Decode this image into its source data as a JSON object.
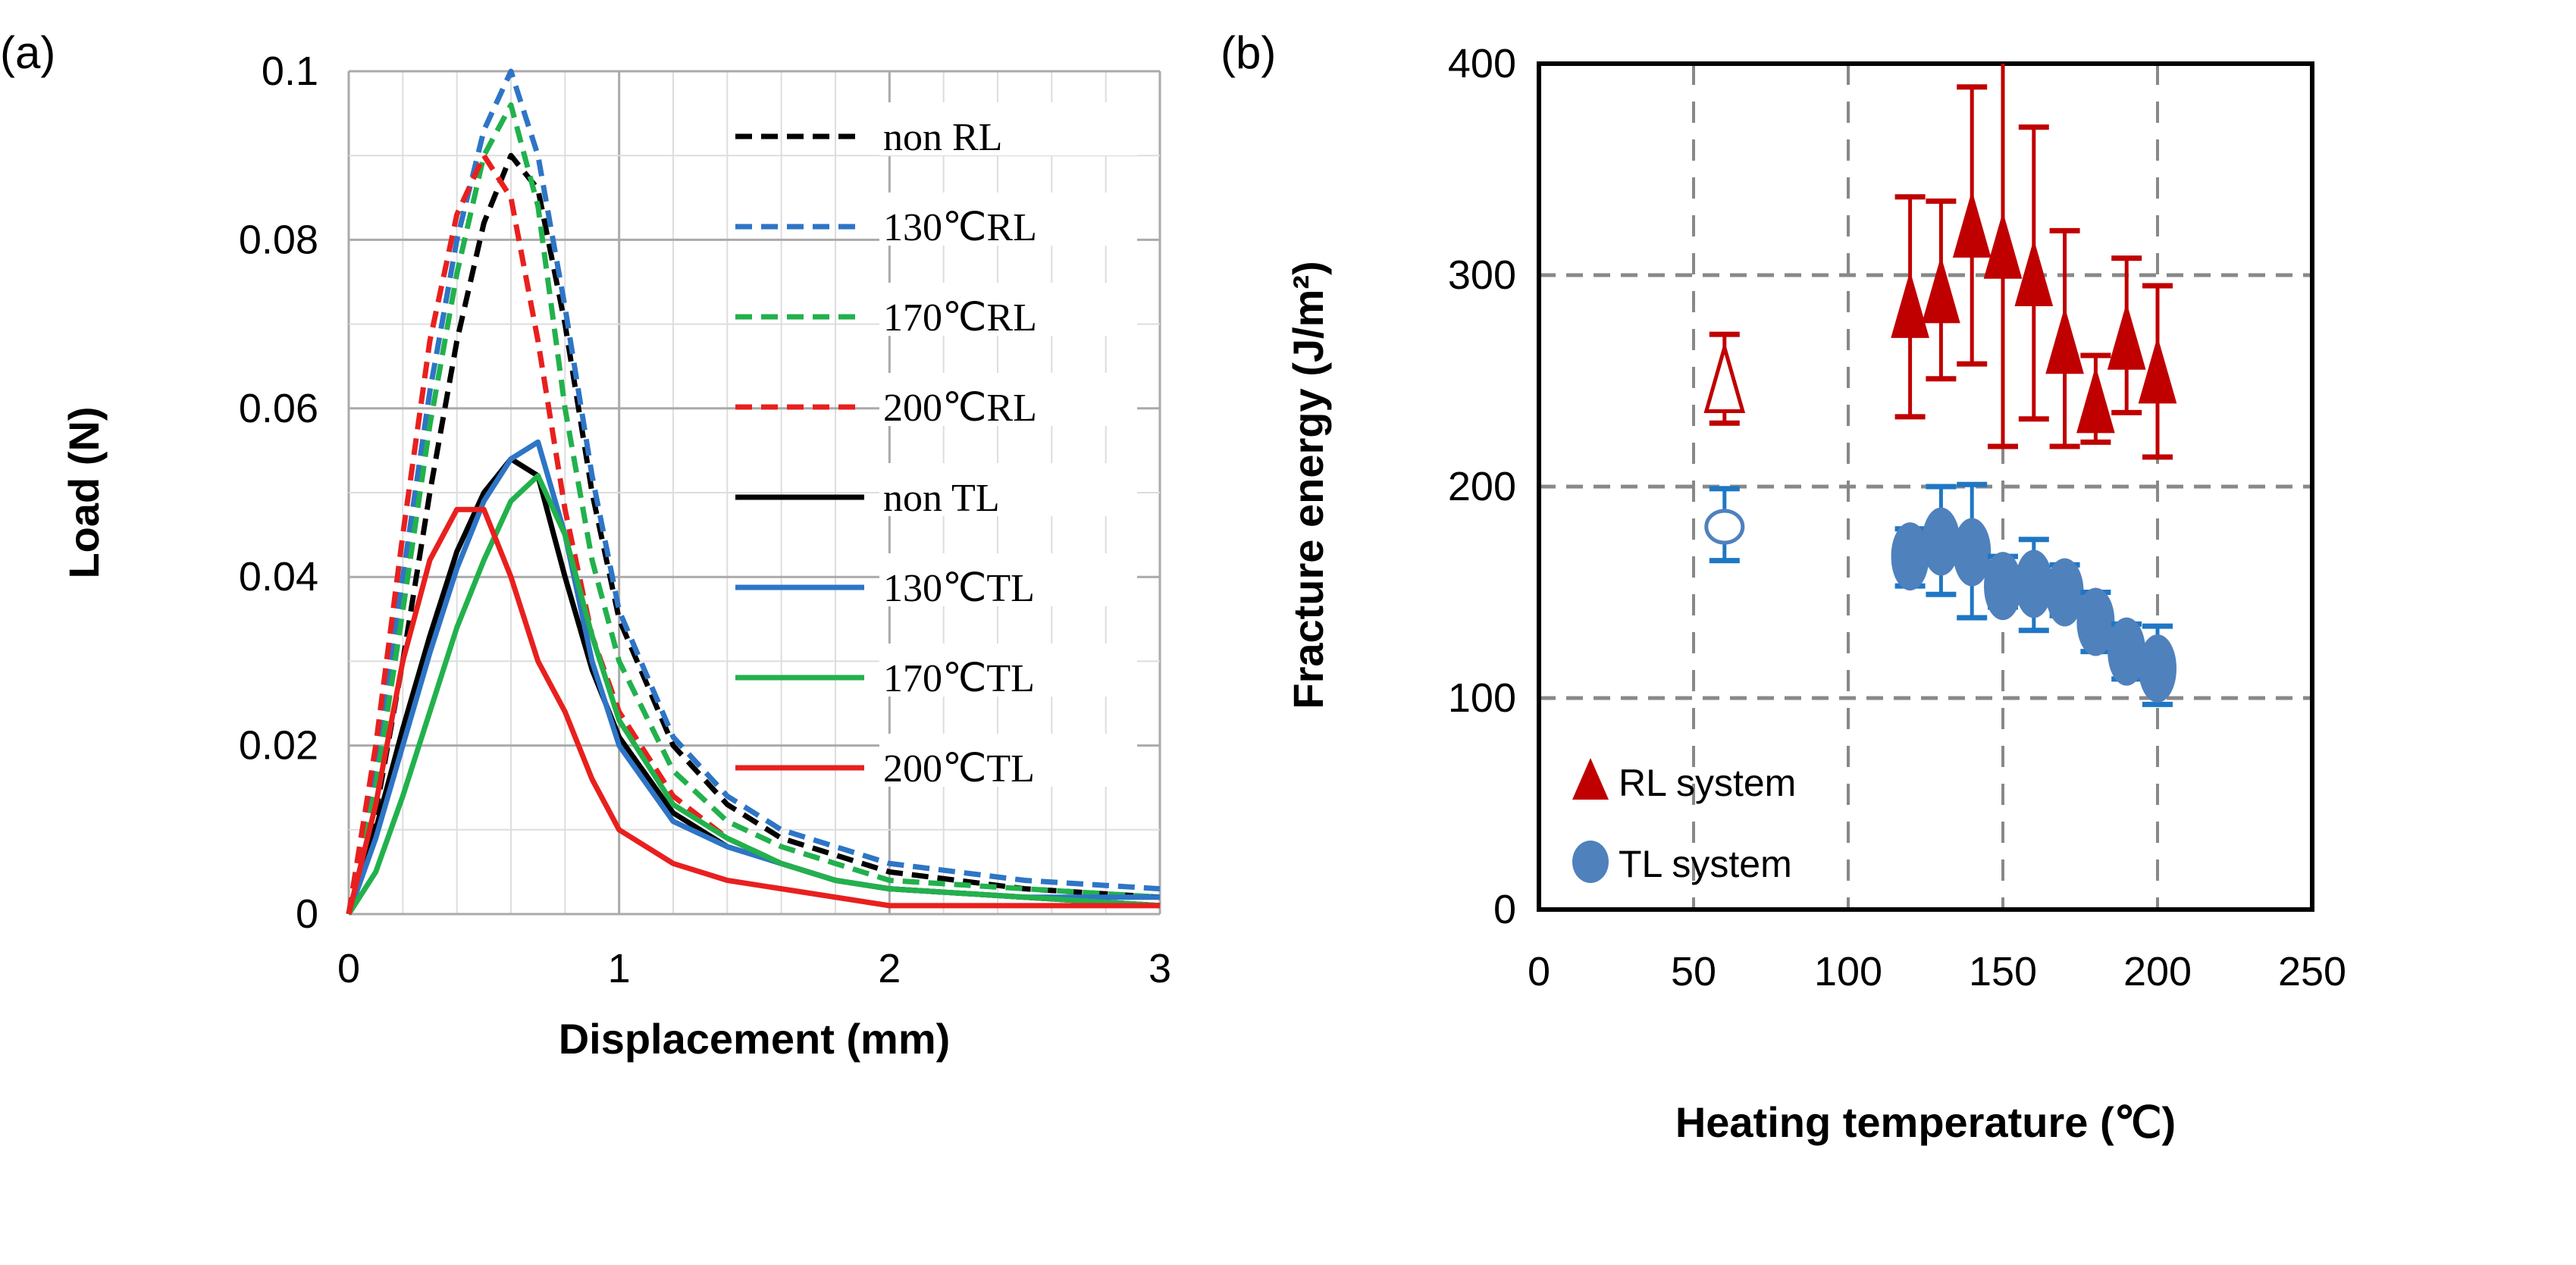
{
  "chart_data": [
    {
      "panel_label": "(a)",
      "type": "line",
      "xlabel": "Displacement (mm)",
      "ylabel": "Load (N)",
      "xlim": [
        0,
        3
      ],
      "ylim": [
        0,
        0.1
      ],
      "xticks": [
        "0",
        "1",
        "2",
        "3"
      ],
      "yticks": [
        "0",
        "0.02",
        "0.04",
        "0.06",
        "0.08",
        "0.1"
      ],
      "grid": true,
      "legend_position": "top-right",
      "x": [
        0,
        0.1,
        0.2,
        0.3,
        0.4,
        0.5,
        0.6,
        0.7,
        0.8,
        0.9,
        1.0,
        1.2,
        1.4,
        1.6,
        1.8,
        2.0,
        2.5,
        3.0
      ],
      "series": [
        {
          "name": "non RL",
          "color": "#000000",
          "dash": true,
          "values": [
            0,
            0.012,
            0.03,
            0.05,
            0.068,
            0.082,
            0.09,
            0.086,
            0.07,
            0.05,
            0.035,
            0.02,
            0.013,
            0.009,
            0.007,
            0.005,
            0.003,
            0.002
          ]
        },
        {
          "name": "130℃RL",
          "color": "#2e75c6",
          "dash": true,
          "values": [
            0,
            0.018,
            0.04,
            0.062,
            0.08,
            0.093,
            0.1,
            0.09,
            0.072,
            0.052,
            0.036,
            0.021,
            0.014,
            0.01,
            0.008,
            0.006,
            0.004,
            0.003
          ]
        },
        {
          "name": "170℃RL",
          "color": "#22b14c",
          "dash": true,
          "values": [
            0,
            0.015,
            0.036,
            0.058,
            0.076,
            0.09,
            0.096,
            0.084,
            0.06,
            0.042,
            0.03,
            0.017,
            0.011,
            0.008,
            0.006,
            0.004,
            0.003,
            0.002
          ]
        },
        {
          "name": "200℃RL",
          "color": "#e8201e",
          "dash": true,
          "values": [
            0,
            0.02,
            0.045,
            0.068,
            0.083,
            0.09,
            0.085,
            0.068,
            0.048,
            0.033,
            0.024,
            0.014,
            0.009,
            0.006,
            0.004,
            0.003,
            0.002,
            0.001
          ]
        },
        {
          "name": "non TL",
          "color": "#000000",
          "dash": false,
          "values": [
            0,
            0.01,
            0.022,
            0.033,
            0.043,
            0.05,
            0.054,
            0.052,
            0.04,
            0.029,
            0.021,
            0.012,
            0.008,
            0.006,
            0.004,
            0.003,
            0.002,
            0.001
          ]
        },
        {
          "name": "130℃TL",
          "color": "#2e75c6",
          "dash": false,
          "values": [
            0,
            0.009,
            0.02,
            0.031,
            0.041,
            0.049,
            0.054,
            0.056,
            0.045,
            0.03,
            0.02,
            0.011,
            0.008,
            0.006,
            0.004,
            0.003,
            0.002,
            0.002
          ]
        },
        {
          "name": "170℃TL",
          "color": "#22b14c",
          "dash": false,
          "values": [
            0,
            0.005,
            0.014,
            0.024,
            0.034,
            0.042,
            0.049,
            0.052,
            0.045,
            0.033,
            0.023,
            0.013,
            0.009,
            0.006,
            0.004,
            0.003,
            0.002,
            0.001
          ]
        },
        {
          "name": "200℃TL",
          "color": "#e8201e",
          "dash": false,
          "values": [
            0,
            0.013,
            0.03,
            0.042,
            0.048,
            0.048,
            0.04,
            0.03,
            0.024,
            0.016,
            0.01,
            0.006,
            0.004,
            0.003,
            0.002,
            0.001,
            0.001,
            0.001
          ]
        }
      ]
    },
    {
      "panel_label": "(b)",
      "type": "scatter",
      "xlabel": "Heating temperature (℃)",
      "ylabel": "Fracture energy (J/m²)",
      "xlim": [
        0,
        250
      ],
      "ylim": [
        0,
        400
      ],
      "xticks": [
        "0",
        "50",
        "100",
        "150",
        "200",
        "250"
      ],
      "yticks": [
        "0",
        "100",
        "200",
        "300",
        "400"
      ],
      "grid": true,
      "legend_position": "bottom-left",
      "series": [
        {
          "name": "RL system",
          "color": "#c00000",
          "marker": "triangle",
          "x": [
            60,
            120,
            130,
            140,
            150,
            160,
            170,
            180,
            190,
            200
          ],
          "values": [
            250,
            285,
            292,
            323,
            313,
            300,
            268,
            240,
            270,
            254
          ],
          "err_low": [
            230,
            233,
            251,
            258,
            219,
            232,
            219,
            221,
            235,
            214
          ],
          "err_high": [
            272,
            337,
            335,
            389,
            400,
            370,
            321,
            262,
            308,
            295
          ],
          "hollow_first": true
        },
        {
          "name": "TL system",
          "color": "#4f81bd",
          "errcolor": "#1f77c4",
          "marker": "circle",
          "x": [
            60,
            120,
            130,
            140,
            150,
            160,
            170,
            180,
            190,
            200
          ],
          "values": [
            181,
            167,
            174,
            169,
            153,
            154,
            150,
            136,
            122,
            114
          ],
          "err_low": [
            165,
            153,
            149,
            138,
            143,
            132,
            139,
            122,
            109,
            97
          ],
          "err_high": [
            199,
            180,
            200,
            201,
            167,
            175,
            163,
            150,
            135,
            134
          ],
          "hollow_first": true
        }
      ]
    }
  ]
}
